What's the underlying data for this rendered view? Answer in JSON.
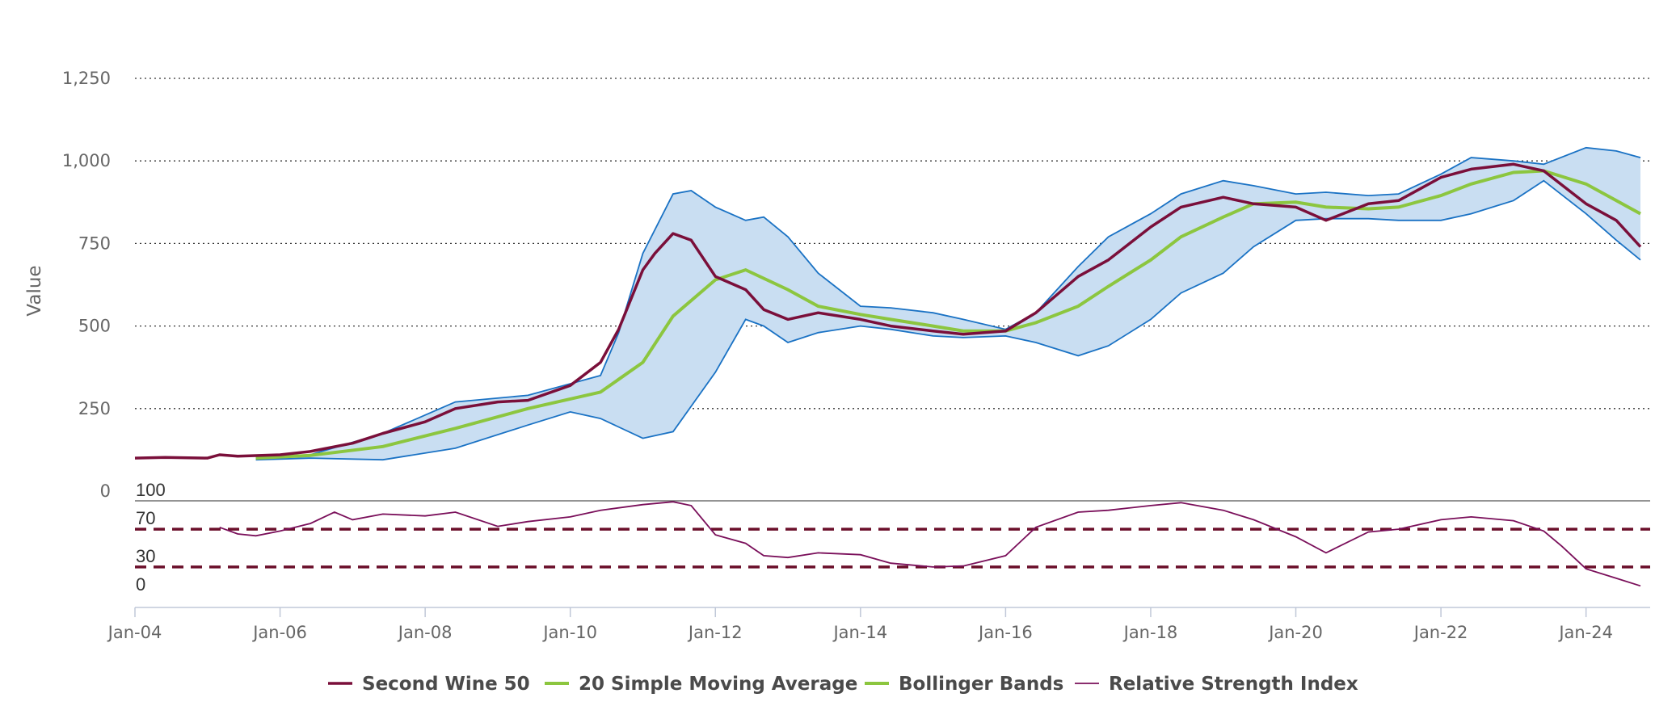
{
  "chart_data": {
    "type": "line",
    "ylabel": "Value",
    "ylim": [
      0,
      1250
    ],
    "yticks": [
      "0",
      "250",
      "500",
      "750",
      "1,000",
      "1,250"
    ],
    "xticks": [
      "Jan-04",
      "Jan-06",
      "Jan-08",
      "Jan-10",
      "Jan-12",
      "Jan-14",
      "Jan-16",
      "Jan-18",
      "Jan-20",
      "Jan-22",
      "Jan-24"
    ],
    "xrange": [
      "2004-01",
      "2024-10"
    ],
    "grid": true,
    "legend_position": "bottom-center",
    "colors": {
      "price": "#7a0f3a",
      "sma": "#8cc63f",
      "band_fill": "#c9def2",
      "band_line": "#1a72c4",
      "rsi": "#7a0f5a",
      "rsi_ref": "#6b0f2a"
    },
    "series": [
      {
        "name": "Second Wine 50",
        "points": [
          [
            "2004-01",
            100
          ],
          [
            "2004-06",
            102
          ],
          [
            "2005-01",
            100
          ],
          [
            "2005-03",
            110
          ],
          [
            "2005-06",
            106
          ],
          [
            "2006-01",
            110
          ],
          [
            "2006-06",
            120
          ],
          [
            "2007-01",
            145
          ],
          [
            "2007-06",
            175
          ],
          [
            "2008-01",
            210
          ],
          [
            "2008-06",
            250
          ],
          [
            "2009-01",
            270
          ],
          [
            "2009-06",
            275
          ],
          [
            "2010-01",
            320
          ],
          [
            "2010-06",
            390
          ],
          [
            "2010-09",
            490
          ],
          [
            "2011-01",
            670
          ],
          [
            "2011-03",
            720
          ],
          [
            "2011-06",
            780
          ],
          [
            "2011-09",
            760
          ],
          [
            "2012-01",
            650
          ],
          [
            "2012-06",
            610
          ],
          [
            "2012-09",
            550
          ],
          [
            "2013-01",
            520
          ],
          [
            "2013-06",
            540
          ],
          [
            "2014-01",
            520
          ],
          [
            "2014-06",
            500
          ],
          [
            "2015-01",
            485
          ],
          [
            "2015-06",
            475
          ],
          [
            "2016-01",
            485
          ],
          [
            "2016-06",
            540
          ],
          [
            "2017-01",
            650
          ],
          [
            "2017-06",
            700
          ],
          [
            "2018-01",
            800
          ],
          [
            "2018-06",
            860
          ],
          [
            "2019-01",
            890
          ],
          [
            "2019-06",
            870
          ],
          [
            "2020-01",
            860
          ],
          [
            "2020-06",
            820
          ],
          [
            "2021-01",
            870
          ],
          [
            "2021-06",
            880
          ],
          [
            "2022-01",
            950
          ],
          [
            "2022-06",
            975
          ],
          [
            "2023-01",
            990
          ],
          [
            "2023-06",
            970
          ],
          [
            "2024-01",
            870
          ],
          [
            "2024-06",
            820
          ],
          [
            "2024-10",
            740
          ]
        ]
      },
      {
        "name": "20 Simple Moving Average",
        "points": [
          [
            "2005-09",
            100
          ],
          [
            "2006-06",
            108
          ],
          [
            "2007-06",
            135
          ],
          [
            "2008-06",
            190
          ],
          [
            "2009-06",
            250
          ],
          [
            "2010-06",
            300
          ],
          [
            "2011-01",
            390
          ],
          [
            "2011-06",
            530
          ],
          [
            "2012-01",
            640
          ],
          [
            "2012-06",
            670
          ],
          [
            "2013-01",
            610
          ],
          [
            "2013-06",
            560
          ],
          [
            "2014-01",
            535
          ],
          [
            "2014-06",
            520
          ],
          [
            "2015-01",
            500
          ],
          [
            "2015-06",
            485
          ],
          [
            "2016-01",
            485
          ],
          [
            "2016-06",
            510
          ],
          [
            "2017-01",
            560
          ],
          [
            "2017-06",
            620
          ],
          [
            "2018-01",
            700
          ],
          [
            "2018-06",
            770
          ],
          [
            "2019-01",
            830
          ],
          [
            "2019-06",
            870
          ],
          [
            "2020-01",
            875
          ],
          [
            "2020-06",
            860
          ],
          [
            "2021-01",
            855
          ],
          [
            "2021-06",
            860
          ],
          [
            "2022-01",
            895
          ],
          [
            "2022-06",
            930
          ],
          [
            "2023-01",
            965
          ],
          [
            "2023-06",
            970
          ],
          [
            "2024-01",
            930
          ],
          [
            "2024-06",
            880
          ],
          [
            "2024-10",
            840
          ]
        ]
      },
      {
        "name": "Bollinger Bands",
        "upper": [
          [
            "2005-09",
            100
          ],
          [
            "2006-06",
            110
          ],
          [
            "2007-06",
            175
          ],
          [
            "2008-06",
            270
          ],
          [
            "2009-06",
            290
          ],
          [
            "2010-06",
            350
          ],
          [
            "2010-09",
            480
          ],
          [
            "2011-01",
            720
          ],
          [
            "2011-06",
            900
          ],
          [
            "2011-09",
            910
          ],
          [
            "2012-01",
            860
          ],
          [
            "2012-06",
            820
          ],
          [
            "2012-09",
            830
          ],
          [
            "2013-01",
            770
          ],
          [
            "2013-06",
            660
          ],
          [
            "2014-01",
            560
          ],
          [
            "2014-06",
            555
          ],
          [
            "2015-01",
            540
          ],
          [
            "2015-06",
            520
          ],
          [
            "2016-01",
            490
          ],
          [
            "2016-06",
            540
          ],
          [
            "2017-01",
            680
          ],
          [
            "2017-06",
            770
          ],
          [
            "2018-01",
            840
          ],
          [
            "2018-06",
            900
          ],
          [
            "2019-01",
            940
          ],
          [
            "2019-06",
            925
          ],
          [
            "2020-01",
            900
          ],
          [
            "2020-06",
            905
          ],
          [
            "2021-01",
            895
          ],
          [
            "2021-06",
            900
          ],
          [
            "2022-01",
            960
          ],
          [
            "2022-06",
            1010
          ],
          [
            "2023-01",
            1000
          ],
          [
            "2023-06",
            990
          ],
          [
            "2024-01",
            1040
          ],
          [
            "2024-06",
            1030
          ],
          [
            "2024-10",
            1010
          ]
        ],
        "lower": [
          [
            "2005-09",
            95
          ],
          [
            "2006-06",
            100
          ],
          [
            "2007-06",
            95
          ],
          [
            "2008-06",
            130
          ],
          [
            "2009-06",
            200
          ],
          [
            "2010-01",
            240
          ],
          [
            "2010-06",
            220
          ],
          [
            "2011-01",
            160
          ],
          [
            "2011-06",
            180
          ],
          [
            "2012-01",
            360
          ],
          [
            "2012-06",
            520
          ],
          [
            "2012-09",
            500
          ],
          [
            "2013-01",
            450
          ],
          [
            "2013-06",
            480
          ],
          [
            "2014-01",
            500
          ],
          [
            "2014-06",
            490
          ],
          [
            "2015-01",
            470
          ],
          [
            "2015-06",
            465
          ],
          [
            "2016-01",
            470
          ],
          [
            "2016-06",
            450
          ],
          [
            "2017-01",
            410
          ],
          [
            "2017-06",
            440
          ],
          [
            "2018-01",
            520
          ],
          [
            "2018-06",
            600
          ],
          [
            "2019-01",
            660
          ],
          [
            "2019-06",
            740
          ],
          [
            "2020-01",
            820
          ],
          [
            "2020-06",
            825
          ],
          [
            "2021-01",
            825
          ],
          [
            "2021-06",
            820
          ],
          [
            "2022-01",
            820
          ],
          [
            "2022-06",
            840
          ],
          [
            "2023-01",
            880
          ],
          [
            "2023-06",
            940
          ],
          [
            "2024-01",
            840
          ],
          [
            "2024-06",
            760
          ],
          [
            "2024-10",
            700
          ]
        ]
      },
      {
        "name": "Relative Strength Index",
        "ylim": [
          0,
          100
        ],
        "ticks": [
          "0",
          "30",
          "70",
          "100"
        ],
        "reference_lines": [
          70,
          30
        ],
        "points": [
          [
            "2005-03",
            72
          ],
          [
            "2005-06",
            65
          ],
          [
            "2005-09",
            63
          ],
          [
            "2006-01",
            68
          ],
          [
            "2006-06",
            76
          ],
          [
            "2006-10",
            88
          ],
          [
            "2007-01",
            80
          ],
          [
            "2007-06",
            86
          ],
          [
            "2008-01",
            84
          ],
          [
            "2008-06",
            88
          ],
          [
            "2009-01",
            73
          ],
          [
            "2009-06",
            78
          ],
          [
            "2010-01",
            83
          ],
          [
            "2010-06",
            90
          ],
          [
            "2011-01",
            96
          ],
          [
            "2011-06",
            99
          ],
          [
            "2011-09",
            95
          ],
          [
            "2012-01",
            64
          ],
          [
            "2012-06",
            55
          ],
          [
            "2012-09",
            42
          ],
          [
            "2013-01",
            40
          ],
          [
            "2013-06",
            45
          ],
          [
            "2014-01",
            43
          ],
          [
            "2014-06",
            34
          ],
          [
            "2015-01",
            30
          ],
          [
            "2015-06",
            31
          ],
          [
            "2016-01",
            42
          ],
          [
            "2016-06",
            72
          ],
          [
            "2017-01",
            88
          ],
          [
            "2017-06",
            90
          ],
          [
            "2018-01",
            95
          ],
          [
            "2018-06",
            98
          ],
          [
            "2019-01",
            90
          ],
          [
            "2019-06",
            80
          ],
          [
            "2020-01",
            62
          ],
          [
            "2020-06",
            45
          ],
          [
            "2021-01",
            67
          ],
          [
            "2021-06",
            70
          ],
          [
            "2022-01",
            80
          ],
          [
            "2022-06",
            83
          ],
          [
            "2023-01",
            79
          ],
          [
            "2023-06",
            68
          ],
          [
            "2023-09",
            52
          ],
          [
            "2024-01",
            28
          ],
          [
            "2024-06",
            18
          ],
          [
            "2024-10",
            10
          ]
        ]
      }
    ]
  }
}
